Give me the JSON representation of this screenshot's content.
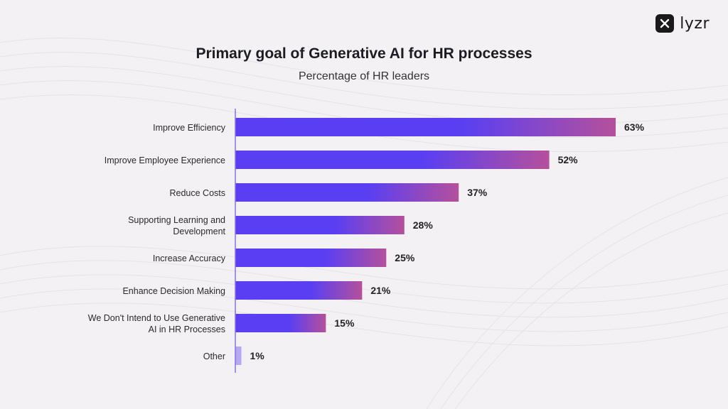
{
  "brand": {
    "name": "lyzr",
    "icon": "lyzr-logo-icon"
  },
  "colors": {
    "bar_start": "#5a3ff2",
    "bar_end": "#b5509c",
    "bar_small": "#b7a8f4",
    "axis": "#8b6fe0",
    "label": "#2a2a2a",
    "background": "#f4f1f4"
  },
  "chart_data": {
    "type": "bar",
    "orientation": "horizontal",
    "title": "Primary goal of Generative  AI for HR processes",
    "subtitle": "Percentage of HR leaders",
    "categories": [
      [
        "Improve Efficiency"
      ],
      [
        "Improve Employee Experience"
      ],
      [
        "Reduce Costs"
      ],
      [
        "Supporting Learning and",
        "Development"
      ],
      [
        "Increase Accuracy"
      ],
      [
        "Enhance Decision Making"
      ],
      [
        "We Don't Intend to Use Generative",
        "AI in HR Processes"
      ],
      [
        "Other"
      ]
    ],
    "values": [
      63,
      52,
      37,
      28,
      25,
      21,
      15,
      1
    ],
    "value_labels": [
      "63%",
      "52%",
      "37%",
      "28%",
      "25%",
      "21%",
      "15%",
      "1%"
    ],
    "unit": "%",
    "xlim": [
      0,
      63
    ],
    "grid": false,
    "legend": "none"
  }
}
